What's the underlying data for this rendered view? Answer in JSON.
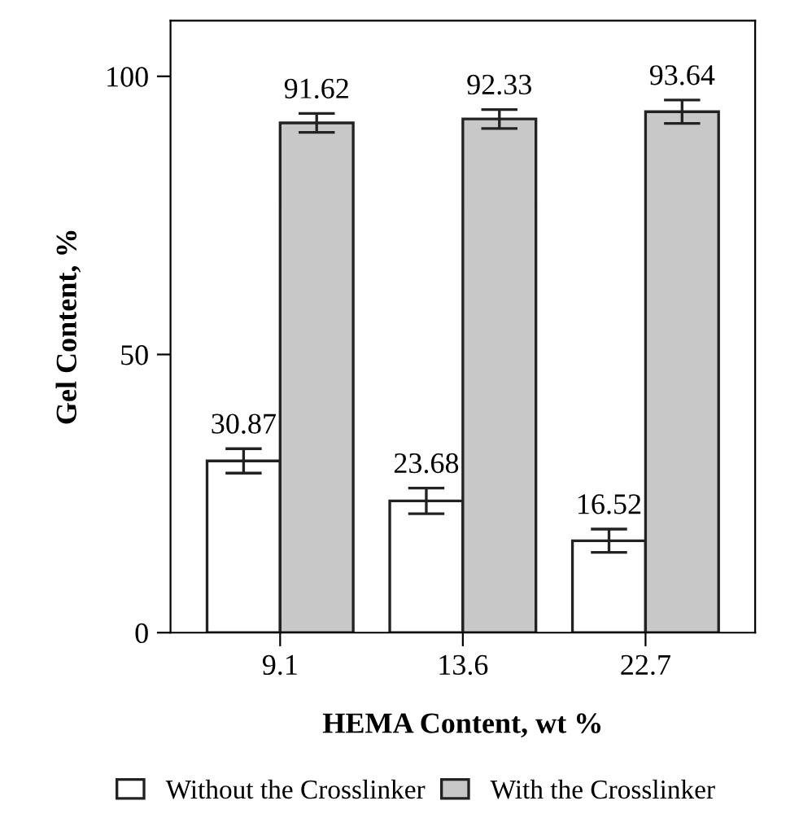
{
  "chart_data": {
    "type": "bar",
    "xlabel": "HEMA Content, wt %",
    "ylabel": "Gel Content, %",
    "categories": [
      "9.1",
      "13.6",
      "22.7"
    ],
    "series": [
      {
        "name": "Without the Crosslinker",
        "color": "#ffffff",
        "values": [
          30.87,
          23.68,
          16.52
        ],
        "errors": [
          2.2,
          2.3,
          2.1
        ]
      },
      {
        "name": "With the Crosslinker",
        "color": "#c8c8c8",
        "values": [
          91.62,
          92.33,
          93.64
        ],
        "errors": [
          1.7,
          1.7,
          2.1
        ]
      }
    ],
    "ylim": [
      0,
      110
    ],
    "yticks": [
      0,
      50,
      100
    ],
    "data_labels": true,
    "grid": false,
    "legend": "bottom"
  }
}
